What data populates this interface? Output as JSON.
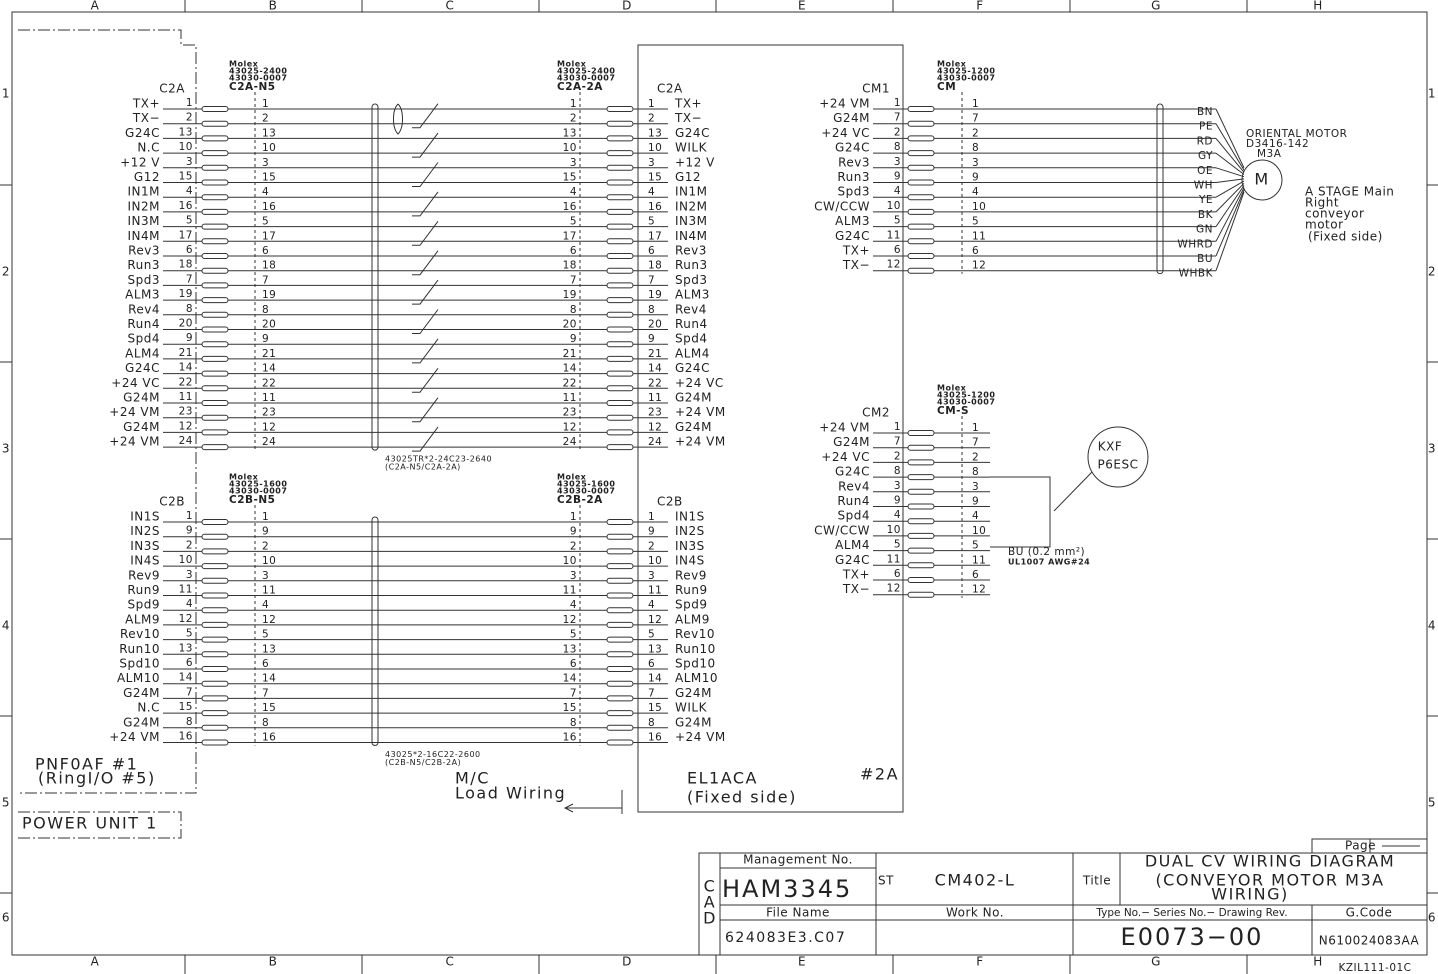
{
  "border": {
    "columns": [
      "A",
      "B",
      "C",
      "D",
      "E",
      "F",
      "G",
      "H"
    ],
    "rows": [
      1,
      2,
      3,
      4,
      5,
      6
    ]
  },
  "c2a": {
    "left_label": "C2A",
    "right_label": "C2A",
    "n5": {
      "maker": "Molex",
      "part1": "43025-2400",
      "part2": "43030-0007",
      "name": "C2A-N5"
    },
    "far": {
      "maker": "Molex",
      "part1": "43025-2400",
      "part2": "43030-0007",
      "name": "C2A-2A"
    },
    "cable": [
      "43025TR*2-24C23-2640",
      "(C2A-N5/C2A-2A)"
    ],
    "rows": [
      {
        "signal": "TX+",
        "pin": 1,
        "remote": "TX+"
      },
      {
        "signal": "TX−",
        "pin": 2,
        "remote": "TX−"
      },
      {
        "signal": "G24C",
        "pin": 13,
        "remote": "G24C"
      },
      {
        "signal": "N.C",
        "pin": 10,
        "remote": "WILK"
      },
      {
        "signal": "+12 V",
        "pin": 3,
        "remote": "+12 V"
      },
      {
        "signal": "G12",
        "pin": 15,
        "remote": "G12"
      },
      {
        "signal": "IN1M",
        "pin": 4,
        "remote": "IN1M"
      },
      {
        "signal": "IN2M",
        "pin": 16,
        "remote": "IN2M"
      },
      {
        "signal": "IN3M",
        "pin": 5,
        "remote": "IN3M"
      },
      {
        "signal": "IN4M",
        "pin": 17,
        "remote": "IN4M"
      },
      {
        "signal": "Rev3",
        "pin": 6,
        "remote": "Rev3"
      },
      {
        "signal": "Run3",
        "pin": 18,
        "remote": "Run3"
      },
      {
        "signal": "Spd3",
        "pin": 7,
        "remote": "Spd3"
      },
      {
        "signal": "ALM3",
        "pin": 19,
        "remote": "ALM3"
      },
      {
        "signal": "Rev4",
        "pin": 8,
        "remote": "Rev4"
      },
      {
        "signal": "Run4",
        "pin": 20,
        "remote": "Run4"
      },
      {
        "signal": "Spd4",
        "pin": 9,
        "remote": "Spd4"
      },
      {
        "signal": "ALM4",
        "pin": 21,
        "remote": "ALM4"
      },
      {
        "signal": "G24C",
        "pin": 14,
        "remote": "G24C"
      },
      {
        "signal": "+24 VC",
        "pin": 22,
        "remote": "+24 VC"
      },
      {
        "signal": "G24M",
        "pin": 11,
        "remote": "G24M"
      },
      {
        "signal": "+24 VM",
        "pin": 23,
        "remote": "+24 VM"
      },
      {
        "signal": "G24M",
        "pin": 12,
        "remote": "G24M"
      },
      {
        "signal": "+24 VM",
        "pin": 24,
        "remote": "+24 VM"
      }
    ]
  },
  "c2b": {
    "left_label": "C2B",
    "right_label": "C2B",
    "n5": {
      "maker": "Molex",
      "part1": "43025-1600",
      "part2": "43030-0007",
      "name": "C2B-N5"
    },
    "far": {
      "maker": "Molex",
      "part1": "43025-1600",
      "part2": "43030-0007",
      "name": "C2B-2A"
    },
    "cable": [
      "43025*2-16C22-2600",
      "(C2B-N5/C2B-2A)"
    ],
    "rows": [
      {
        "signal": "IN1S",
        "pin": 1,
        "remote": "IN1S"
      },
      {
        "signal": "IN2S",
        "pin": 9,
        "remote": "IN2S"
      },
      {
        "signal": "IN3S",
        "pin": 2,
        "remote": "IN3S"
      },
      {
        "signal": "IN4S",
        "pin": 10,
        "remote": "IN4S"
      },
      {
        "signal": "Rev9",
        "pin": 3,
        "remote": "Rev9"
      },
      {
        "signal": "Run9",
        "pin": 11,
        "remote": "Run9"
      },
      {
        "signal": "Spd9",
        "pin": 4,
        "remote": "Spd9"
      },
      {
        "signal": "ALM9",
        "pin": 12,
        "remote": "ALM9"
      },
      {
        "signal": "Rev10",
        "pin": 5,
        "remote": "Rev10"
      },
      {
        "signal": "Run10",
        "pin": 13,
        "remote": "Run10"
      },
      {
        "signal": "Spd10",
        "pin": 6,
        "remote": "Spd10"
      },
      {
        "signal": "ALM10",
        "pin": 14,
        "remote": "ALM10"
      },
      {
        "signal": "G24M",
        "pin": 7,
        "remote": "G24M"
      },
      {
        "signal": "N.C",
        "pin": 15,
        "remote": "WILK"
      },
      {
        "signal": "G24M",
        "pin": 8,
        "remote": "G24M"
      },
      {
        "signal": "+24 VM",
        "pin": 16,
        "remote": "+24 VM"
      }
    ]
  },
  "cm1": {
    "label": "CM1",
    "header": {
      "maker": "Molex",
      "part1": "43025-1200",
      "part2": "43030-0007",
      "name": "CM"
    },
    "rows": [
      {
        "signal": "+24 VM",
        "pin": 1,
        "wire": "BN"
      },
      {
        "signal": "G24M",
        "pin": 7,
        "wire": "PE"
      },
      {
        "signal": "+24 VC",
        "pin": 2,
        "wire": "RD"
      },
      {
        "signal": "G24C",
        "pin": 8,
        "wire": "GY"
      },
      {
        "signal": "Rev3",
        "pin": 3,
        "wire": "OE"
      },
      {
        "signal": "Run3",
        "pin": 9,
        "wire": "WH"
      },
      {
        "signal": "Spd3",
        "pin": 4,
        "wire": "YE"
      },
      {
        "signal": "CW/CCW",
        "pin": 10,
        "wire": "BK"
      },
      {
        "signal": "ALM3",
        "pin": 5,
        "wire": "GN"
      },
      {
        "signal": "G24C",
        "pin": 11,
        "wire": "WHRD"
      },
      {
        "signal": "TX+",
        "pin": 6,
        "wire": "BU"
      },
      {
        "signal": "TX−",
        "pin": 12,
        "wire": "WHBK"
      }
    ]
  },
  "motor": {
    "maker": "ORIENTAL MOTOR",
    "model": "D3416-142",
    "name": "M3A",
    "symbol": "M",
    "description": [
      "A STAGE Main",
      "Right",
      "conveyor",
      "motor",
      "(Fixed side)"
    ]
  },
  "cm2": {
    "label": "CM2",
    "header": {
      "maker": "Molex",
      "part1": "43025-1200",
      "part2": "43030-0007",
      "name": "CM-S"
    },
    "rows": [
      {
        "signal": "+24 VM",
        "pin": 1
      },
      {
        "signal": "G24M",
        "pin": 7
      },
      {
        "signal": "+24 VC",
        "pin": 2
      },
      {
        "signal": "G24C",
        "pin": 8
      },
      {
        "signal": "Rev4",
        "pin": 3
      },
      {
        "signal": "Run4",
        "pin": 9
      },
      {
        "signal": "Spd4",
        "pin": 4
      },
      {
        "signal": "CW/CCW",
        "pin": 10
      },
      {
        "signal": "ALM4",
        "pin": 5
      },
      {
        "signal": "G24C",
        "pin": 11
      },
      {
        "signal": "TX+",
        "pin": 6
      },
      {
        "signal": "TX−",
        "pin": 12
      }
    ]
  },
  "sensor": {
    "name": [
      "KXF",
      "P6ESC"
    ],
    "wire": "BU  (0.2 mm²)",
    "wire_spec": "UL1007 AWG#24"
  },
  "blocks": {
    "pnf": [
      "PNF0AF #1",
      "(RingI/O #5)"
    ],
    "power": "POWER UNIT 1",
    "mc": [
      "M/C",
      "Load Wiring"
    ],
    "el": [
      "EL1ACA",
      "(Fixed side)"
    ],
    "unit": "#2A"
  },
  "title_block": {
    "page": "Page",
    "management_label": "Management No.",
    "management_no": "HAM3345",
    "st": "ST",
    "model": "CM402-L",
    "title_label": "Title",
    "title": [
      "DUAL CV WIRING DIAGRAM",
      "(CONVEYOR MOTOR M3A",
      "WIRING)"
    ],
    "cad": [
      "C",
      "A",
      "D"
    ],
    "file_name_label": "File Name",
    "work_no_label": "Work No.",
    "type_label": "Type No.− Series No.− Drawing Rev.",
    "gcode_label": "G.Code",
    "file_name": "624083E3.C07",
    "drawing_no": "E0073−00",
    "gcode": "N610024083AA",
    "sheet_code": "KZIL111-01C"
  }
}
